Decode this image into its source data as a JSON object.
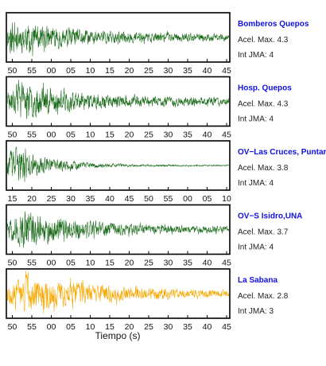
{
  "chart_data": {
    "type": "line",
    "xlabel": "Tiempo (s)",
    "series": [
      {
        "name": "Bomberos Quepos",
        "color": "#1a6b1a",
        "ticks": [
          "50",
          "55",
          "00",
          "05",
          "10",
          "15",
          "20",
          "25",
          "30",
          "35",
          "40",
          "45"
        ],
        "acel_label": "Acel. Max. 4.3",
        "int_label": "Int JMA: 4",
        "seed": 11,
        "onset": 0.0,
        "peak": 0.02,
        "decay": 0.28,
        "floor": 0.18
      },
      {
        "name": "Hosp. Quepos",
        "color": "#1a6b1a",
        "ticks": [
          "50",
          "55",
          "00",
          "05",
          "10",
          "15",
          "20",
          "25",
          "30",
          "35",
          "40",
          "45"
        ],
        "acel_label": "Acel. Max. 4.3",
        "int_label": "Int JMA: 4",
        "seed": 23,
        "onset": 0.0,
        "peak": 0.06,
        "decay": 0.26,
        "floor": 0.2
      },
      {
        "name": "OV−Las Cruces, Puntar",
        "color": "#1a6b1a",
        "ticks": [
          "15",
          "20",
          "25",
          "30",
          "35",
          "40",
          "45",
          "50",
          "55",
          "00",
          "05",
          "10"
        ],
        "acel_label": "Acel. Max. 3.8",
        "int_label": "Int JMA: 4",
        "seed": 37,
        "onset": 0.0,
        "peak": 0.04,
        "decay": 0.16,
        "floor": 0.04
      },
      {
        "name": "OV−S Isidro,UNA",
        "color": "#1a6b1a",
        "ticks": [
          "50",
          "55",
          "00",
          "05",
          "10",
          "15",
          "20",
          "25",
          "30",
          "35",
          "40",
          "45"
        ],
        "acel_label": "Acel. Max. 3.7",
        "int_label": "Int JMA: 4",
        "seed": 51,
        "onset": 0.0,
        "peak": 0.08,
        "decay": 0.3,
        "floor": 0.14
      },
      {
        "name": "La Sabana",
        "color": "#f5a800",
        "ticks": [
          "50",
          "55",
          "00",
          "05",
          "10",
          "15",
          "20",
          "25",
          "30",
          "35",
          "40",
          "45"
        ],
        "acel_label": "Acel. Max. 2.8",
        "int_label": "Int JMA: 3",
        "seed": 67,
        "onset": 0.0,
        "peak": 0.1,
        "decay": 0.32,
        "floor": 0.16
      }
    ]
  }
}
